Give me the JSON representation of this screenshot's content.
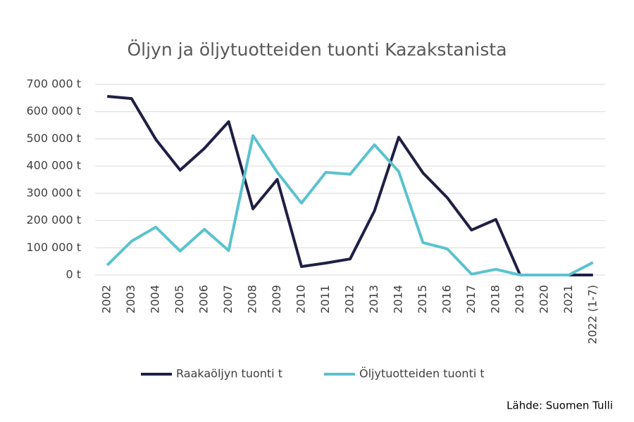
{
  "chart_data": {
    "type": "line",
    "title": "Öljyn ja öljytuotteiden tuonti Kazakstanista",
    "categories": [
      "2002",
      "2003",
      "2004",
      "2005",
      "2006",
      "2007",
      "2008",
      "2009",
      "2010",
      "2011",
      "2012",
      "2013",
      "2014",
      "2015",
      "2016",
      "2017",
      "2018",
      "2019",
      "2020",
      "2021",
      "2022 (1-7)"
    ],
    "series": [
      {
        "name": "Raakaöljyn tuonti t",
        "color": "#1f1f45",
        "values": [
          656000,
          648000,
          498000,
          385000,
          465000,
          563000,
          243000,
          351000,
          31000,
          44000,
          59000,
          235000,
          506000,
          375000,
          284000,
          165000,
          204000,
          0,
          0,
          0,
          0
        ]
      },
      {
        "name": "Öljytuotteiden tuonti t",
        "color": "#5bc2cf",
        "values": [
          36000,
          124000,
          176000,
          88000,
          168000,
          90000,
          512000,
          377000,
          264000,
          377000,
          370000,
          478000,
          380000,
          119000,
          96000,
          3000,
          21000,
          0,
          0,
          0,
          46000
        ]
      }
    ],
    "ylim": [
      0,
      700000
    ],
    "yticks": [
      {
        "value": 0,
        "label": "0 t"
      },
      {
        "value": 100000,
        "label": "100 000 t"
      },
      {
        "value": 200000,
        "label": "200 000 t"
      },
      {
        "value": 300000,
        "label": "300 000 t"
      },
      {
        "value": 400000,
        "label": "400 000 t"
      },
      {
        "value": 500000,
        "label": "500 000 t"
      },
      {
        "value": 600000,
        "label": "600 000 t"
      },
      {
        "value": 700000,
        "label": "700 000 t"
      }
    ],
    "grid": true,
    "legend": "bottom",
    "source": "Lähde: Suomen Tulli"
  }
}
